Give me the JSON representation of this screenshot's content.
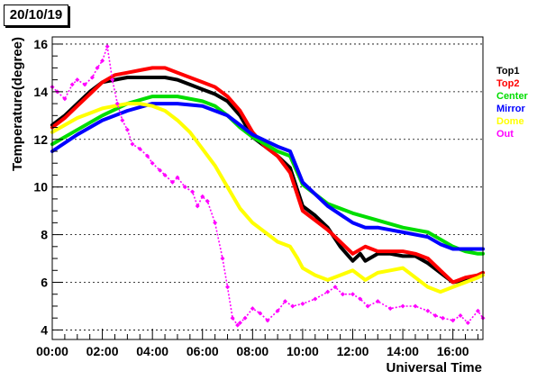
{
  "header": {
    "date": "20/10/19"
  },
  "chart_data": {
    "type": "scatter",
    "title": "",
    "xlabel": "Universal Time",
    "ylabel": "Temperature(degree)",
    "xlim": [
      0,
      17.2
    ],
    "ylim": [
      3.6,
      16.3
    ],
    "grid": "horizontal dashed",
    "legend_position": "right",
    "x_tick_labels": [
      "00:00",
      "02:00",
      "04:00",
      "06:00",
      "08:00",
      "10:00",
      "12:00",
      "14:00",
      "16:00"
    ],
    "y_tick_labels": [
      "4",
      "6",
      "8",
      "10",
      "12",
      "14",
      "16"
    ],
    "series": [
      {
        "name": "Top1",
        "color": "#000000",
        "x": [
          0,
          0.5,
          1,
          1.5,
          2,
          2.5,
          3,
          3.5,
          4,
          4.5,
          5,
          5.5,
          6,
          6.5,
          7,
          7.5,
          8,
          8.5,
          9,
          9.5,
          10,
          10.5,
          11,
          11.5,
          12,
          12.3,
          12.5,
          13,
          13.5,
          14,
          14.5,
          15,
          15.5,
          16,
          16.5,
          17,
          17.2
        ],
        "y": [
          12.6,
          13.0,
          13.5,
          14.0,
          14.4,
          14.5,
          14.6,
          14.6,
          14.6,
          14.6,
          14.5,
          14.3,
          14.1,
          13.9,
          13.6,
          13.0,
          12.1,
          11.7,
          11.3,
          10.8,
          9.2,
          8.8,
          8.3,
          7.5,
          6.9,
          7.2,
          6.9,
          7.2,
          7.2,
          7.1,
          7.1,
          6.8,
          6.4,
          6.0,
          6.1,
          6.3,
          6.4
        ]
      },
      {
        "name": "Top2",
        "color": "#ff0000",
        "x": [
          0,
          0.5,
          1,
          1.5,
          2,
          2.5,
          3,
          3.5,
          4,
          4.5,
          5,
          5.5,
          6,
          6.5,
          7,
          7.5,
          8,
          8.5,
          9,
          9.5,
          10,
          10.5,
          11,
          11.5,
          12,
          12.5,
          13,
          13.5,
          14,
          14.5,
          15,
          15.5,
          16,
          16.5,
          17,
          17.2
        ],
        "y": [
          12.5,
          12.9,
          13.4,
          13.9,
          14.4,
          14.7,
          14.8,
          14.9,
          15.0,
          15.0,
          14.8,
          14.6,
          14.4,
          14.2,
          13.8,
          13.2,
          12.3,
          11.7,
          11.3,
          10.6,
          9.0,
          8.6,
          8.2,
          7.7,
          7.2,
          7.5,
          7.3,
          7.3,
          7.3,
          7.2,
          7.0,
          6.5,
          6.0,
          6.2,
          6.3,
          6.4
        ]
      },
      {
        "name": "Center",
        "color": "#00dd00",
        "x": [
          0,
          1,
          2,
          3,
          4,
          5,
          6,
          6.5,
          7,
          7.5,
          8,
          9,
          9.5,
          10,
          11,
          12,
          13,
          14,
          15,
          16,
          16.5,
          17,
          17.2
        ],
        "y": [
          11.8,
          12.4,
          13.0,
          13.5,
          13.8,
          13.8,
          13.6,
          13.4,
          13.0,
          12.5,
          12.1,
          11.5,
          11.3,
          10.1,
          9.3,
          8.9,
          8.6,
          8.3,
          8.1,
          7.5,
          7.3,
          7.2,
          7.2
        ]
      },
      {
        "name": "Mirror",
        "color": "#0000ff",
        "x": [
          0,
          1,
          2,
          3,
          4,
          5,
          6,
          7,
          7.5,
          8,
          9,
          9.5,
          10,
          11,
          12,
          12.5,
          13,
          14,
          15,
          15.5,
          16,
          17,
          17.2
        ],
        "y": [
          11.5,
          12.2,
          12.8,
          13.2,
          13.5,
          13.5,
          13.4,
          13.0,
          12.6,
          12.2,
          11.7,
          11.5,
          10.2,
          9.2,
          8.5,
          8.3,
          8.3,
          8.1,
          7.9,
          7.6,
          7.4,
          7.4,
          7.4
        ]
      },
      {
        "name": "Dome",
        "color": "#ffff00",
        "x": [
          0,
          0.5,
          1,
          1.5,
          2,
          2.5,
          3,
          3.5,
          4,
          4.5,
          5,
          5.5,
          6,
          6.5,
          7,
          7.5,
          8,
          8.5,
          9,
          9.5,
          9.8,
          10,
          10.5,
          11,
          11.5,
          12,
          12.5,
          13,
          13.5,
          14,
          14.5,
          15,
          15.5,
          16,
          16.5,
          17,
          17.2
        ],
        "y": [
          12.3,
          12.6,
          12.9,
          13.1,
          13.3,
          13.4,
          13.5,
          13.5,
          13.4,
          13.2,
          12.8,
          12.3,
          11.6,
          10.9,
          10.0,
          9.1,
          8.5,
          8.1,
          7.7,
          7.5,
          7.0,
          6.6,
          6.3,
          6.1,
          6.3,
          6.5,
          6.1,
          6.4,
          6.5,
          6.6,
          6.2,
          5.8,
          5.6,
          5.8,
          6.0,
          6.2,
          6.3
        ]
      },
      {
        "name": "Out",
        "color": "#ff00ff",
        "x": [
          0,
          0.2,
          0.5,
          0.8,
          1,
          1.3,
          1.6,
          1.8,
          2,
          2.2,
          2.4,
          2.6,
          2.8,
          3,
          3.2,
          3.5,
          3.8,
          4,
          4.3,
          4.5,
          4.8,
          5,
          5.3,
          5.6,
          5.8,
          6,
          6.2,
          6.5,
          6.8,
          7,
          7.2,
          7.4,
          7.5,
          7.7,
          8,
          8.3,
          8.6,
          9,
          9.3,
          9.6,
          10,
          10.5,
          11,
          11.3,
          11.6,
          12,
          12.3,
          12.6,
          13,
          13.5,
          14,
          14.5,
          15,
          15.3,
          15.6,
          16,
          16.3,
          16.6,
          17,
          17.2
        ],
        "y": [
          14.2,
          14.0,
          13.7,
          14.3,
          14.5,
          14.3,
          14.6,
          15.0,
          15.3,
          15.9,
          14.5,
          13.5,
          12.8,
          12.4,
          11.8,
          11.6,
          11.3,
          11.0,
          10.7,
          10.5,
          10.2,
          10.4,
          10.0,
          9.8,
          9.2,
          9.6,
          9.4,
          8.5,
          7.0,
          5.8,
          4.5,
          4.2,
          4.3,
          4.5,
          4.9,
          4.7,
          4.4,
          4.8,
          5.2,
          5.0,
          5.1,
          5.3,
          5.6,
          5.8,
          5.5,
          5.5,
          5.3,
          5.0,
          5.2,
          4.9,
          5.0,
          5.0,
          4.8,
          4.6,
          4.5,
          4.4,
          4.6,
          4.3,
          4.8,
          4.5
        ]
      }
    ]
  }
}
